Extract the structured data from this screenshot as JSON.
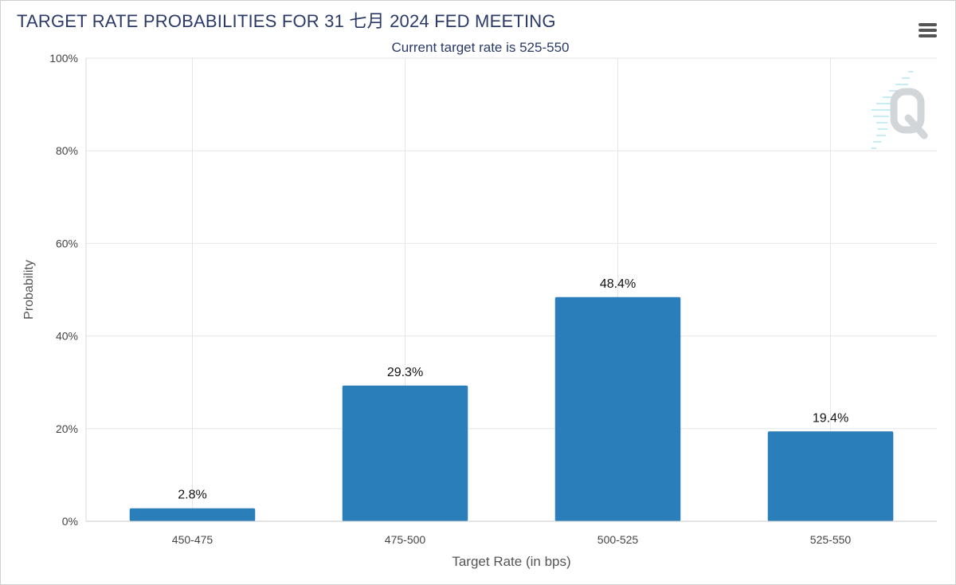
{
  "chart_data": {
    "type": "bar",
    "title": "TARGET RATE PROBABILITIES FOR 31 七月 2024 FED MEETING",
    "subtitle": "Current target rate is 525-550",
    "xlabel": "Target Rate (in bps)",
    "ylabel": "Probability",
    "categories": [
      "450-475",
      "475-500",
      "500-525",
      "525-550"
    ],
    "values": [
      2.8,
      29.3,
      48.4,
      19.4
    ],
    "data_labels": [
      "2.8%",
      "29.3%",
      "48.4%",
      "19.4%"
    ],
    "ylim": [
      0,
      100
    ],
    "yticks": [
      0,
      20,
      40,
      60,
      80,
      100
    ],
    "ytick_labels": [
      "0%",
      "20%",
      "40%",
      "60%",
      "80%",
      "100%"
    ],
    "grid": true,
    "legend": "none",
    "bar_color": "#2a7fba"
  },
  "watermark_icon": "cme-fedwatch-q-logo",
  "menu_icon": "hamburger-menu-icon"
}
